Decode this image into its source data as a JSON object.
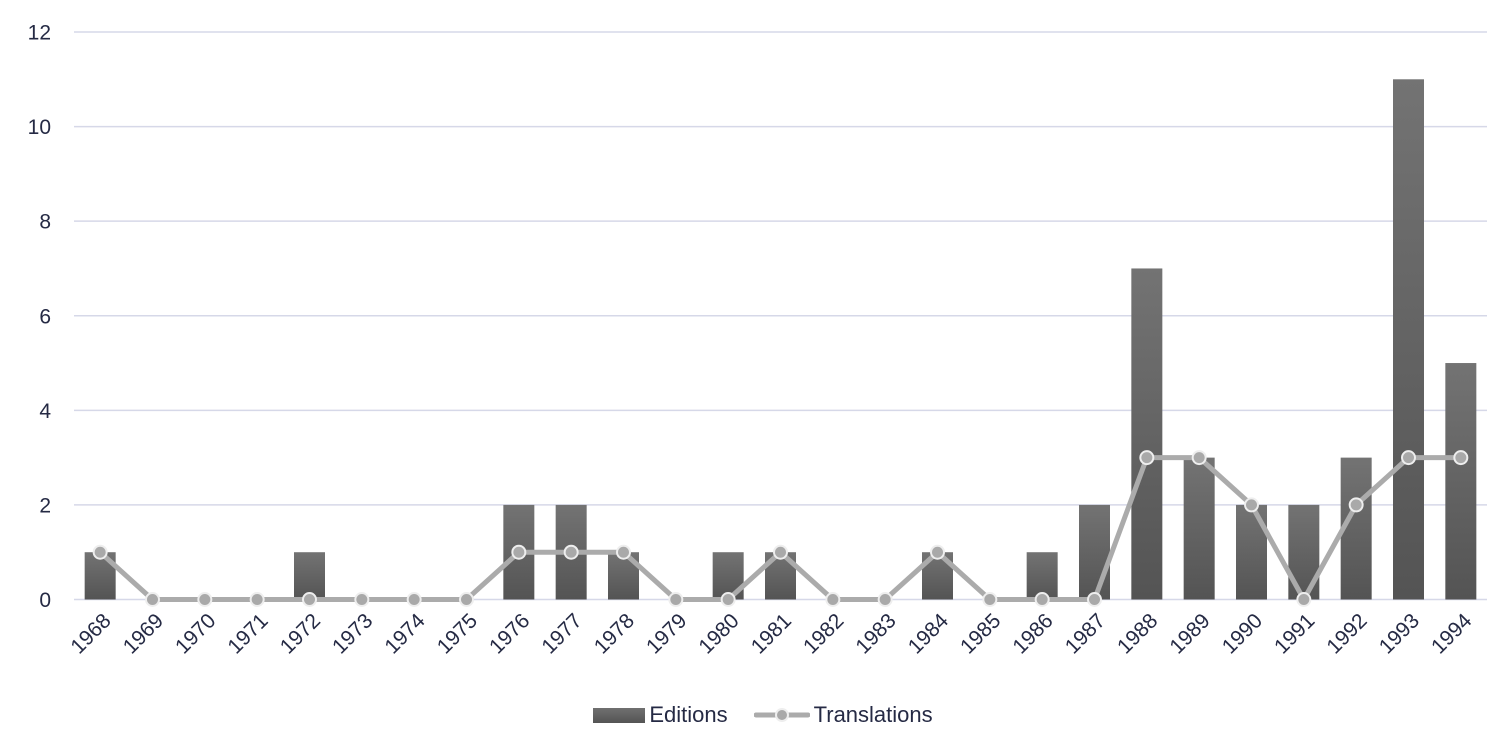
{
  "chart_data": {
    "type": "bar",
    "title": "",
    "xlabel": "",
    "ylabel": "",
    "ylim": [
      0,
      12
    ],
    "yticks": [
      0,
      2,
      4,
      6,
      8,
      10,
      12
    ],
    "grid": true,
    "legend_position": "bottom",
    "categories": [
      "1968",
      "1969",
      "1970",
      "1971",
      "1972",
      "1973",
      "1974",
      "1975",
      "1976",
      "1977",
      "1978",
      "1979",
      "1980",
      "1981",
      "1982",
      "1983",
      "1984",
      "1985",
      "1986",
      "1987",
      "1988",
      "1989",
      "1990",
      "1991",
      "1992",
      "1993",
      "1994"
    ],
    "series": [
      {
        "name": "Editions",
        "type": "bar",
        "color": "#5e5e5e",
        "values": [
          1,
          0,
          0,
          0,
          1,
          0,
          0,
          0,
          2,
          2,
          1,
          0,
          1,
          1,
          0,
          0,
          1,
          0,
          1,
          2,
          7,
          3,
          2,
          2,
          3,
          11,
          5
        ]
      },
      {
        "name": "Translations",
        "type": "line",
        "color": "#ababab",
        "values": [
          1,
          0,
          0,
          0,
          0,
          0,
          0,
          0,
          1,
          1,
          1,
          0,
          0,
          1,
          0,
          0,
          1,
          0,
          0,
          0,
          3,
          3,
          2,
          0,
          2,
          3,
          3
        ]
      }
    ]
  },
  "legend": {
    "editions_label": "Editions",
    "translations_label": "Translations"
  },
  "colors": {
    "bar_top": "#737373",
    "bar_bottom": "#545454",
    "line": "#ababab",
    "marker_fill": "#a9a9a9",
    "marker_stroke": "#eeeeee",
    "grid": "#d6d8e8",
    "text": "#252a44"
  }
}
